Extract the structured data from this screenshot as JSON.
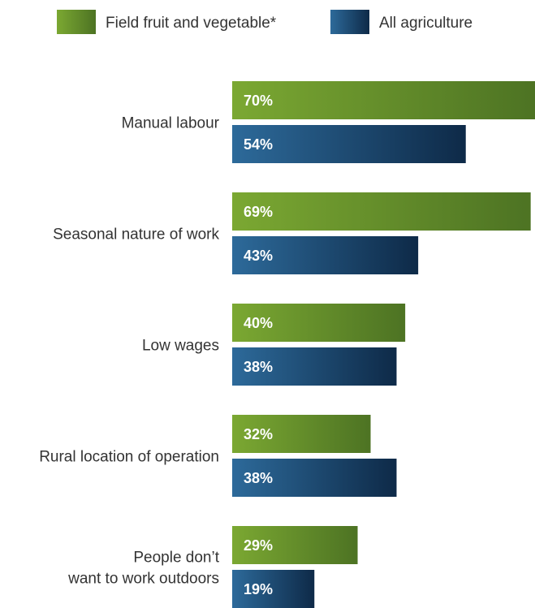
{
  "chart_data": {
    "type": "bar",
    "orientation": "horizontal",
    "categories": [
      [
        "Manual labour"
      ],
      [
        "Seasonal nature of work"
      ],
      [
        "Low wages"
      ],
      [
        "Rural location of operation"
      ],
      [
        "People don’t",
        "want to work outdoors"
      ]
    ],
    "series": [
      {
        "name": "Field fruit and vegetable*",
        "values": [
          70,
          69,
          40,
          32,
          29
        ],
        "value_labels": [
          "70%",
          "69%",
          "40%",
          "32%",
          "29%"
        ],
        "color_start": "#7ba832",
        "color_end": "#4d7323"
      },
      {
        "name": "All agriculture",
        "values": [
          54,
          43,
          38,
          38,
          19
        ],
        "value_labels": [
          "54%",
          "43%",
          "38%",
          "38%",
          "19%"
        ],
        "color_start": "#2d6a9a",
        "color_end": "#0e2a48"
      }
    ],
    "xlim": [
      0,
      70
    ],
    "legend_position": "top",
    "grid": false,
    "title": "",
    "xlabel": "",
    "ylabel": ""
  }
}
